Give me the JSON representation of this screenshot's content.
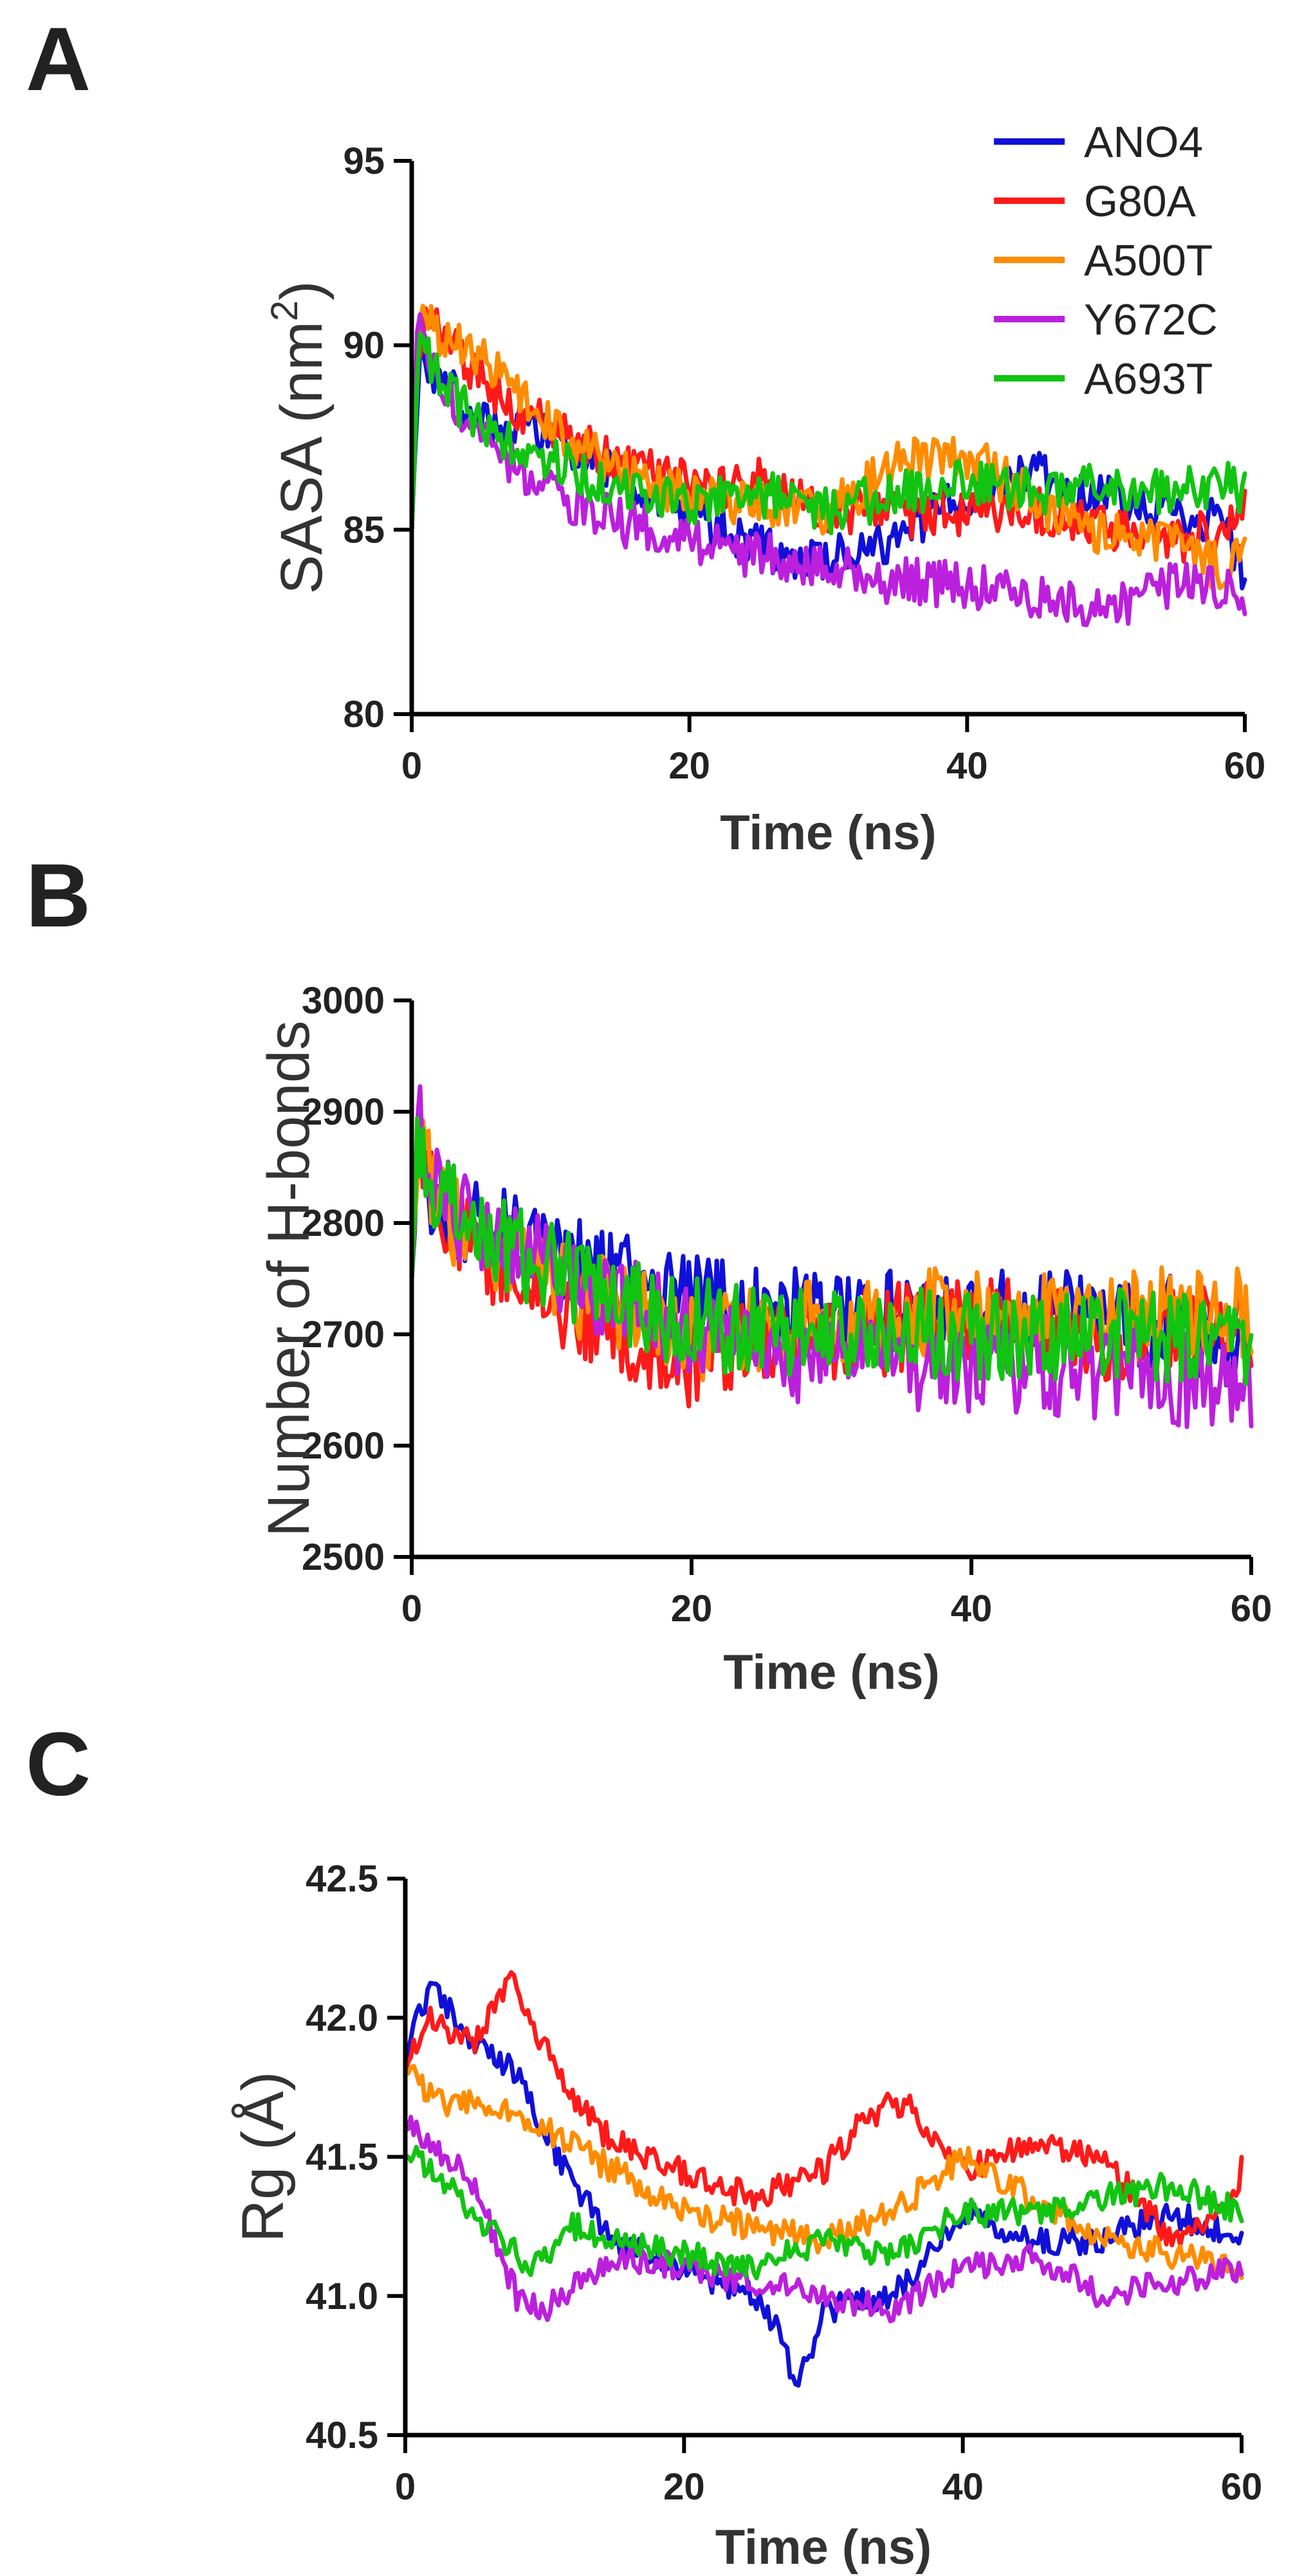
{
  "figure": {
    "background": "#ffffff",
    "axis_color": "#000000"
  },
  "legend": {
    "position": "top-right of panel A",
    "entries": [
      {
        "name": "ANO4",
        "color": "#1010d8"
      },
      {
        "name": "G80A",
        "color": "#ff1a1a"
      },
      {
        "name": "A500T",
        "color": "#ff8c00"
      },
      {
        "name": "Y672C",
        "color": "#bb20dd"
      },
      {
        "name": "A693T",
        "color": "#12c412"
      }
    ]
  },
  "chart_data": [
    {
      "panel": "A",
      "type": "line",
      "title": "",
      "xlabel": "Time (ns)",
      "ylabel": "SASA (nm2)",
      "ylabel_main": "SASA (nm",
      "ylabel_sup": "2",
      "ylabel_end": ")",
      "xlim": [
        0,
        60
      ],
      "ylim": [
        80,
        95
      ],
      "xticks": [
        0,
        20,
        40,
        60
      ],
      "yticks": [
        80,
        85,
        90,
        95
      ],
      "grid": false,
      "noise": 0.65,
      "series": [
        {
          "name": "ANO4",
          "color": "#1010d8",
          "x": [
            0,
            0.5,
            1,
            2,
            5,
            10,
            15,
            20,
            25,
            30,
            35,
            40,
            45,
            50,
            55,
            58,
            60
          ],
          "values": [
            85,
            89.5,
            89.3,
            89.0,
            88.0,
            87.5,
            86.5,
            85.5,
            84.5,
            84.2,
            84.8,
            86.0,
            86.5,
            85.8,
            85.5,
            85.2,
            83.9
          ]
        },
        {
          "name": "G80A",
          "color": "#ff1a1a",
          "x": [
            0,
            0.5,
            1,
            2,
            5,
            10,
            15,
            20,
            25,
            30,
            35,
            40,
            45,
            50,
            55,
            58,
            60
          ],
          "values": [
            85,
            90.0,
            91.0,
            90.3,
            89.0,
            87.8,
            86.8,
            86.2,
            86.3,
            85.6,
            85.4,
            85.5,
            85.5,
            85.0,
            84.7,
            85.0,
            85.6
          ]
        },
        {
          "name": "A500T",
          "color": "#ff8c00",
          "x": [
            0,
            0.5,
            1,
            2,
            5,
            10,
            15,
            20,
            25,
            30,
            35,
            40,
            45,
            50,
            55,
            58,
            60
          ],
          "values": [
            85,
            90.5,
            90.8,
            90.2,
            89.6,
            87.8,
            86.5,
            86.0,
            85.6,
            85.5,
            86.8,
            87.0,
            85.8,
            84.8,
            84.5,
            84.0,
            84.5
          ]
        },
        {
          "name": "Y672C",
          "color": "#bb20dd",
          "x": [
            0,
            0.5,
            1,
            2,
            5,
            10,
            15,
            20,
            25,
            30,
            35,
            40,
            45,
            50,
            55,
            58,
            60
          ],
          "values": [
            85,
            91.5,
            90.0,
            89.0,
            87.5,
            86.0,
            85.2,
            84.8,
            84.3,
            84.0,
            83.6,
            83.5,
            83.2,
            82.7,
            83.5,
            83.4,
            83.0
          ]
        },
        {
          "name": "A693T",
          "color": "#12c412",
          "x": [
            0,
            0.5,
            1,
            2,
            5,
            10,
            15,
            20,
            25,
            30,
            35,
            40,
            45,
            50,
            55,
            58,
            60
          ],
          "values": [
            85,
            89.8,
            90.0,
            89.0,
            87.8,
            87.0,
            86.0,
            85.8,
            86.0,
            85.5,
            86.0,
            86.3,
            86.0,
            86.2,
            86.0,
            86.3,
            86.0
          ]
        }
      ]
    },
    {
      "panel": "B",
      "type": "line",
      "title": "",
      "xlabel": "Time (ns)",
      "ylabel": "Number of H-bonds",
      "ylabel_main": "Number of H-bonds",
      "ylabel_sup": "",
      "ylabel_end": "",
      "xlim": [
        0,
        60
      ],
      "ylim": [
        2500,
        3000
      ],
      "xticks": [
        0,
        20,
        40,
        60
      ],
      "yticks": [
        2500,
        2600,
        2700,
        2800,
        2900,
        3000
      ],
      "grid": false,
      "noise": 42,
      "series": [
        {
          "name": "ANO4",
          "color": "#1010d8",
          "x": [
            0,
            0.5,
            1,
            3,
            5,
            10,
            15,
            20,
            25,
            30,
            35,
            40,
            45,
            50,
            55,
            60
          ],
          "values": [
            2750,
            2850,
            2830,
            2810,
            2800,
            2770,
            2750,
            2730,
            2720,
            2715,
            2720,
            2725,
            2720,
            2715,
            2710,
            2680
          ]
        },
        {
          "name": "G80A",
          "color": "#ff1a1a",
          "x": [
            0,
            0.5,
            1,
            3,
            5,
            10,
            15,
            20,
            25,
            30,
            35,
            40,
            45,
            50,
            55,
            60
          ],
          "values": [
            2750,
            2870,
            2840,
            2790,
            2770,
            2730,
            2700,
            2670,
            2690,
            2700,
            2705,
            2710,
            2705,
            2700,
            2700,
            2705
          ]
        },
        {
          "name": "A500T",
          "color": "#ff8c00",
          "x": [
            0,
            0.5,
            1,
            3,
            5,
            10,
            15,
            20,
            25,
            30,
            35,
            40,
            45,
            50,
            55,
            60
          ],
          "values": [
            2750,
            2880,
            2850,
            2800,
            2780,
            2750,
            2720,
            2700,
            2700,
            2710,
            2715,
            2720,
            2720,
            2715,
            2720,
            2720
          ]
        },
        {
          "name": "Y672C",
          "color": "#bb20dd",
          "x": [
            0,
            0.5,
            1,
            3,
            5,
            10,
            15,
            20,
            25,
            30,
            35,
            40,
            45,
            50,
            55,
            60
          ],
          "values": [
            2750,
            2900,
            2860,
            2810,
            2790,
            2760,
            2730,
            2700,
            2680,
            2680,
            2675,
            2670,
            2670,
            2665,
            2660,
            2640
          ]
        },
        {
          "name": "A693T",
          "color": "#12c412",
          "x": [
            0,
            0.5,
            1,
            3,
            5,
            10,
            15,
            20,
            25,
            30,
            35,
            40,
            45,
            50,
            55,
            60
          ],
          "values": [
            2750,
            2880,
            2850,
            2810,
            2790,
            2760,
            2730,
            2710,
            2700,
            2700,
            2705,
            2700,
            2700,
            2700,
            2695,
            2690
          ]
        }
      ]
    },
    {
      "panel": "C",
      "type": "line",
      "title": "",
      "xlabel": "Time (ns)",
      "ylabel": "Rg (Å)",
      "ylabel_main": "Rg (Å)",
      "ylabel_sup": "",
      "ylabel_end": "",
      "xlim": [
        0,
        60
      ],
      "ylim": [
        40.5,
        42.5
      ],
      "xticks": [
        0,
        20,
        40,
        60
      ],
      "yticks": [
        40.5,
        41.0,
        41.5,
        42.0,
        42.5
      ],
      "grid": false,
      "noise": 0.05,
      "series": [
        {
          "name": "ANO4",
          "color": "#1010d8",
          "x": [
            0,
            0.5,
            2,
            5,
            8,
            10,
            12,
            15,
            20,
            25,
            27,
            28,
            30,
            35,
            40,
            45,
            50,
            55,
            60
          ],
          "values": [
            41.8,
            42.0,
            42.1,
            41.9,
            41.8,
            41.6,
            41.4,
            41.2,
            41.1,
            41.0,
            40.85,
            40.65,
            40.95,
            41.0,
            41.3,
            41.2,
            41.2,
            41.3,
            41.2
          ]
        },
        {
          "name": "G80A",
          "color": "#ff1a1a",
          "x": [
            0,
            0.5,
            2,
            5,
            7.5,
            10,
            12,
            15,
            20,
            25,
            30,
            33,
            36,
            40,
            45,
            50,
            55,
            58,
            60
          ],
          "values": [
            41.8,
            41.9,
            42.0,
            41.9,
            42.15,
            41.9,
            41.7,
            41.55,
            41.45,
            41.35,
            41.45,
            41.65,
            41.7,
            41.45,
            41.55,
            41.5,
            41.2,
            41.25,
            41.45
          ]
        },
        {
          "name": "A500T",
          "color": "#ff8c00",
          "x": [
            0,
            0.5,
            2,
            5,
            10,
            15,
            20,
            25,
            30,
            35,
            40,
            45,
            50,
            55,
            60
          ],
          "values": [
            41.8,
            41.8,
            41.7,
            41.7,
            41.6,
            41.45,
            41.3,
            41.25,
            41.2,
            41.3,
            41.5,
            41.35,
            41.2,
            41.15,
            41.1
          ]
        },
        {
          "name": "Y672C",
          "color": "#bb20dd",
          "x": [
            0,
            0.5,
            2,
            5,
            8,
            10,
            15,
            20,
            25,
            30,
            35,
            40,
            45,
            50,
            55,
            60
          ],
          "values": [
            41.6,
            41.6,
            41.55,
            41.4,
            41.0,
            40.95,
            41.15,
            41.1,
            41.05,
            41.0,
            40.95,
            41.1,
            41.15,
            41.0,
            41.05,
            41.1
          ]
        },
        {
          "name": "A693T",
          "color": "#12c412",
          "x": [
            0,
            0.5,
            2,
            5,
            9,
            12,
            15,
            20,
            25,
            30,
            35,
            40,
            45,
            50,
            55,
            60
          ],
          "values": [
            41.5,
            41.5,
            41.45,
            41.3,
            41.1,
            41.25,
            41.2,
            41.15,
            41.1,
            41.2,
            41.15,
            41.3,
            41.3,
            41.35,
            41.4,
            41.3
          ]
        }
      ]
    }
  ]
}
